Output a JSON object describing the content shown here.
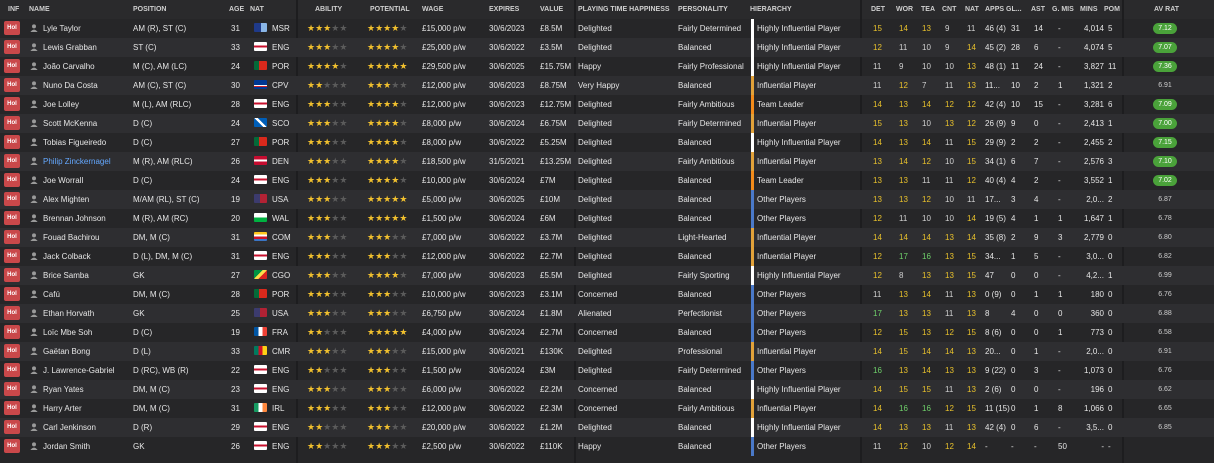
{
  "headers": {
    "inf": "INF",
    "name": "NAME",
    "position": "POSITION",
    "age": "AGE",
    "nat": "NAT",
    "ability": "ABILITY",
    "potential": "POTENTIAL",
    "wage": "WAGE",
    "expires": "EXPIRES",
    "value": "VALUE",
    "playing_time": "PLAYING TIME HAPPINESS",
    "personality": "PERSONALITY",
    "hierarchy": "HIERARCHY",
    "det": "DET",
    "wor": "WOR",
    "tea": "TEA",
    "cnt": "CNT",
    "nat2": "NAT",
    "apps": "APPS",
    "gls": "GL...",
    "ast": "AST",
    "gmis": "G. MIS",
    "mins": "MINS",
    "pom": "POM",
    "avrat": "AV RAT"
  },
  "colors": {
    "inf_badge": "#c9484a",
    "star": "#f2c12e",
    "avrat_green": "#4aa23a",
    "hier_other": "#4a79c9",
    "hier_influential": "#e2a23a",
    "hier_highly": "#ffffff",
    "hier_leader": "#f28b1b"
  },
  "players": [
    {
      "inf": "Hol",
      "name": "Lyle Taylor",
      "position": "AM (R), ST (C)",
      "age": "31",
      "nat": "MSR",
      "ability": 2.5,
      "potential": 3.5,
      "wage": "£15,000 p/w",
      "expires": "30/6/2023",
      "value": "£8.5M",
      "happiness": "Delighted",
      "personality": "Fairly Determined",
      "hierarchy": "Highly Influential Player",
      "det": "15",
      "wor": "14",
      "tea": "13",
      "cnt": "9",
      "nat2": "11",
      "apps": "46 (4)",
      "gls": "31",
      "ast": "14",
      "gmis": "-",
      "mins": "4,014",
      "pom": "5",
      "avrat": "7.12",
      "av_green": true
    },
    {
      "inf": "Hol",
      "name": "Lewis Grabban",
      "position": "ST (C)",
      "age": "33",
      "nat": "ENG",
      "ability": 3,
      "potential": 3.5,
      "wage": "£25,000 p/w",
      "expires": "30/6/2022",
      "value": "£3.5M",
      "happiness": "Delighted",
      "personality": "Balanced",
      "hierarchy": "Highly Influential Player",
      "det": "12",
      "wor": "11",
      "tea": "10",
      "cnt": "9",
      "nat2": "14",
      "apps": "45 (2)",
      "gls": "28",
      "ast": "6",
      "gmis": "-",
      "mins": "4,074",
      "pom": "5",
      "avrat": "7.07",
      "av_green": true
    },
    {
      "inf": "Hol",
      "name": "João Carvalho",
      "position": "M (C), AM (LC)",
      "age": "24",
      "nat": "POR",
      "ability": 3.5,
      "potential": 4.5,
      "wage": "£29,500 p/w",
      "expires": "30/6/2025",
      "value": "£15.75M",
      "happiness": "Happy",
      "personality": "Fairly Professional",
      "hierarchy": "Highly Influential Player",
      "det": "11",
      "wor": "9",
      "tea": "10",
      "cnt": "10",
      "nat2": "13",
      "apps": "48 (1)",
      "gls": "11",
      "ast": "24",
      "gmis": "-",
      "mins": "3,827",
      "pom": "11",
      "avrat": "7.36",
      "av_green": true
    },
    {
      "inf": "Hol",
      "name": "Nuno Da Costa",
      "position": "AM (C), ST (C)",
      "age": "30",
      "nat": "CPV",
      "ability": 2,
      "potential": 2.5,
      "wage": "£12,000 p/w",
      "expires": "30/6/2023",
      "value": "£8.75M",
      "happiness": "Very Happy",
      "personality": "Balanced",
      "hierarchy": "Influential Player",
      "det": "11",
      "wor": "12",
      "tea": "7",
      "cnt": "11",
      "nat2": "13",
      "apps": "11...",
      "gls": "10",
      "ast": "2",
      "gmis": "1",
      "mins": "1,321",
      "pom": "2",
      "avrat": "6.91",
      "av_green": false
    },
    {
      "inf": "Hol",
      "name": "Joe Lolley",
      "position": "M (L), AM (RLC)",
      "age": "28",
      "nat": "ENG",
      "ability": 3,
      "potential": 3.5,
      "wage": "£12,000 p/w",
      "expires": "30/6/2023",
      "value": "£12.75M",
      "happiness": "Delighted",
      "personality": "Fairly Ambitious",
      "hierarchy": "Team Leader",
      "det": "14",
      "wor": "13",
      "tea": "14",
      "cnt": "12",
      "nat2": "12",
      "apps": "42 (4)",
      "gls": "10",
      "ast": "15",
      "gmis": "-",
      "mins": "3,281",
      "pom": "6",
      "avrat": "7.09",
      "av_green": true
    },
    {
      "inf": "Hol",
      "name": "Scott McKenna",
      "position": "D (C)",
      "age": "24",
      "nat": "SCO",
      "ability": 3,
      "potential": 3.5,
      "wage": "£8,000 p/w",
      "expires": "30/6/2024",
      "value": "£6.75M",
      "happiness": "Delighted",
      "personality": "Fairly Determined",
      "hierarchy": "Influential Player",
      "det": "15",
      "wor": "13",
      "tea": "10",
      "cnt": "13",
      "nat2": "12",
      "apps": "26 (9)",
      "gls": "9",
      "ast": "0",
      "gmis": "-",
      "mins": "2,413",
      "pom": "1",
      "avrat": "7.00",
      "av_green": true
    },
    {
      "inf": "Hol",
      "name": "Tobias Figueiredo",
      "position": "D (C)",
      "age": "27",
      "nat": "POR",
      "ability": 3,
      "potential": 3.5,
      "wage": "£8,000 p/w",
      "expires": "30/6/2022",
      "value": "£5.25M",
      "happiness": "Delighted",
      "personality": "Balanced",
      "hierarchy": "Highly Influential Player",
      "det": "14",
      "wor": "13",
      "tea": "14",
      "cnt": "11",
      "nat2": "15",
      "apps": "29 (9)",
      "gls": "2",
      "ast": "2",
      "gmis": "-",
      "mins": "2,455",
      "pom": "2",
      "avrat": "7.15",
      "av_green": true
    },
    {
      "inf": "Hol",
      "name": "Philip Zinckernagel",
      "position": "M (R), AM (RLC)",
      "age": "26",
      "nat": "DEN",
      "ability": 3,
      "potential": 3.5,
      "wage": "£18,500 p/w",
      "expires": "31/5/2021",
      "value": "£13.25M",
      "happiness": "Delighted",
      "personality": "Fairly Ambitious",
      "hierarchy": "Influential Player",
      "det": "13",
      "wor": "14",
      "tea": "12",
      "cnt": "10",
      "nat2": "15",
      "apps": "34 (1)",
      "gls": "6",
      "ast": "7",
      "gmis": "-",
      "mins": "2,576",
      "pom": "3",
      "avrat": "7.10",
      "av_green": true,
      "highlight": true
    },
    {
      "inf": "Hol",
      "name": "Joe Worrall",
      "position": "D (C)",
      "age": "24",
      "nat": "ENG",
      "ability": 3,
      "potential": 3.5,
      "wage": "£10,000 p/w",
      "expires": "30/6/2024",
      "value": "£7M",
      "happiness": "Delighted",
      "personality": "Balanced",
      "hierarchy": "Team Leader",
      "det": "13",
      "wor": "13",
      "tea": "11",
      "cnt": "11",
      "nat2": "12",
      "apps": "40 (4)",
      "gls": "4",
      "ast": "2",
      "gmis": "-",
      "mins": "3,552",
      "pom": "1",
      "avrat": "7.02",
      "av_green": true
    },
    {
      "inf": "Hol",
      "name": "Alex Mighten",
      "position": "M/AM (RL), ST (C)",
      "age": "19",
      "nat": "USA",
      "ability": 2.5,
      "potential": 5,
      "wage": "£5,000 p/w",
      "expires": "30/6/2025",
      "value": "£10M",
      "happiness": "Delighted",
      "personality": "Balanced",
      "hierarchy": "Other Players",
      "det": "13",
      "wor": "13",
      "tea": "12",
      "cnt": "10",
      "nat2": "11",
      "apps": "17...",
      "gls": "3",
      "ast": "4",
      "gmis": "-",
      "mins": "2,0...",
      "pom": "2",
      "avrat": "6.87",
      "av_green": false
    },
    {
      "inf": "Hol",
      "name": "Brennan Johnson",
      "position": "M (R), AM (RC)",
      "age": "20",
      "nat": "WAL",
      "ability": 2.5,
      "potential": 5,
      "wage": "£1,500 p/w",
      "expires": "30/6/2024",
      "value": "£6M",
      "happiness": "Delighted",
      "personality": "Balanced",
      "hierarchy": "Other Players",
      "det": "12",
      "wor": "11",
      "tea": "10",
      "cnt": "10",
      "nat2": "14",
      "apps": "19 (5)",
      "gls": "4",
      "ast": "1",
      "gmis": "1",
      "mins": "1,647",
      "pom": "1",
      "avrat": "6.78",
      "av_green": false
    },
    {
      "inf": "Hol",
      "name": "Fouad Bachirou",
      "position": "DM, M (C)",
      "age": "31",
      "nat": "COM",
      "ability": 2.5,
      "potential": 3,
      "wage": "£7,000 p/w",
      "expires": "30/6/2022",
      "value": "£3.7M",
      "happiness": "Delighted",
      "personality": "Light-Hearted",
      "hierarchy": "Influential Player",
      "det": "14",
      "wor": "14",
      "tea": "14",
      "cnt": "13",
      "nat2": "14",
      "apps": "35 (8)",
      "gls": "2",
      "ast": "9",
      "gmis": "3",
      "mins": "2,779",
      "pom": "0",
      "avrat": "6.80",
      "av_green": false
    },
    {
      "inf": "Hol",
      "name": "Jack Colback",
      "position": "D (L), DM, M (C)",
      "age": "31",
      "nat": "ENG",
      "ability": 2.5,
      "potential": 3,
      "wage": "£12,000 p/w",
      "expires": "30/6/2022",
      "value": "£2.7M",
      "happiness": "Delighted",
      "personality": "Balanced",
      "hierarchy": "Influential Player",
      "det": "12",
      "wor": "17",
      "tea": "16",
      "cnt": "13",
      "nat2": "15",
      "apps": "34...",
      "gls": "1",
      "ast": "5",
      "gmis": "-",
      "mins": "3,0...",
      "pom": "0",
      "avrat": "6.82",
      "av_green": false
    },
    {
      "inf": "Hol",
      "name": "Brice Samba",
      "position": "GK",
      "age": "27",
      "nat": "CGO",
      "ability": 3,
      "potential": 3.5,
      "wage": "£7,000 p/w",
      "expires": "30/6/2023",
      "value": "£5.5M",
      "happiness": "Delighted",
      "personality": "Fairly Sporting",
      "hierarchy": "Highly Influential Player",
      "det": "12",
      "wor": "8",
      "tea": "13",
      "cnt": "13",
      "nat2": "15",
      "apps": "47",
      "gls": "0",
      "ast": "0",
      "gmis": "-",
      "mins": "4,2...",
      "pom": "1",
      "avrat": "6.99",
      "av_green": false
    },
    {
      "inf": "Hol",
      "name": "Cafú",
      "position": "DM, M (C)",
      "age": "28",
      "nat": "POR",
      "ability": 2.5,
      "potential": 3,
      "wage": "£10,000 p/w",
      "expires": "30/6/2023",
      "value": "£3.1M",
      "happiness": "Concerned",
      "personality": "Balanced",
      "hierarchy": "Other Players",
      "det": "11",
      "wor": "13",
      "tea": "14",
      "cnt": "11",
      "nat2": "13",
      "apps": "0 (9)",
      "gls": "0",
      "ast": "1",
      "gmis": "1",
      "mins": "180",
      "pom": "0",
      "avrat": "6.76",
      "av_green": false
    },
    {
      "inf": "Hol",
      "name": "Ethan Horvath",
      "position": "GK",
      "age": "25",
      "nat": "USA",
      "ability": 2.5,
      "potential": 3,
      "wage": "£6,750 p/w",
      "expires": "30/6/2024",
      "value": "£1.8M",
      "happiness": "Alienated",
      "personality": "Perfectionist",
      "hierarchy": "Other Players",
      "det": "17",
      "wor": "13",
      "tea": "13",
      "cnt": "11",
      "nat2": "13",
      "apps": "8",
      "gls": "4",
      "ast": "0",
      "gmis": "0",
      "mins": "360",
      "pom": "0",
      "avrat": "6.88",
      "av_green": false
    },
    {
      "inf": "Hol",
      "name": "Loïc Mbe Soh",
      "position": "D (C)",
      "age": "19",
      "nat": "FRA",
      "ability": 2,
      "potential": 5,
      "wage": "£4,000 p/w",
      "expires": "30/6/2024",
      "value": "£2.7M",
      "happiness": "Concerned",
      "personality": "Balanced",
      "hierarchy": "Other Players",
      "det": "12",
      "wor": "15",
      "tea": "13",
      "cnt": "12",
      "nat2": "15",
      "apps": "8 (6)",
      "gls": "0",
      "ast": "0",
      "gmis": "1",
      "mins": "773",
      "pom": "0",
      "avrat": "6.58",
      "av_green": false
    },
    {
      "inf": "Hol",
      "name": "Gaëtan Bong",
      "position": "D (L)",
      "age": "33",
      "nat": "CMR",
      "ability": 2.5,
      "potential": 3,
      "wage": "£15,000 p/w",
      "expires": "30/6/2021",
      "value": "£130K",
      "happiness": "Delighted",
      "personality": "Professional",
      "hierarchy": "Influential Player",
      "det": "14",
      "wor": "15",
      "tea": "14",
      "cnt": "14",
      "nat2": "13",
      "apps": "20...",
      "gls": "0",
      "ast": "1",
      "gmis": "-",
      "mins": "2,0...",
      "pom": "0",
      "avrat": "6.91",
      "av_green": false
    },
    {
      "inf": "Hol",
      "name": "J. Lawrence-Gabriel",
      "position": "D (RC), WB (R)",
      "age": "22",
      "nat": "ENG",
      "ability": 2,
      "potential": 2.5,
      "wage": "£1,500 p/w",
      "expires": "30/6/2024",
      "value": "£3M",
      "happiness": "Delighted",
      "personality": "Fairly Determined",
      "hierarchy": "Other Players",
      "det": "16",
      "wor": "13",
      "tea": "14",
      "cnt": "13",
      "nat2": "13",
      "apps": "9 (22)",
      "gls": "0",
      "ast": "3",
      "gmis": "-",
      "mins": "1,073",
      "pom": "0",
      "avrat": "6.76",
      "av_green": false
    },
    {
      "inf": "Hol",
      "name": "Ryan Yates",
      "position": "DM, M (C)",
      "age": "23",
      "nat": "ENG",
      "ability": 2.5,
      "potential": 3,
      "wage": "£6,000 p/w",
      "expires": "30/6/2022",
      "value": "£2.2M",
      "happiness": "Concerned",
      "personality": "Balanced",
      "hierarchy": "Highly Influential Player",
      "det": "14",
      "wor": "15",
      "tea": "15",
      "cnt": "11",
      "nat2": "13",
      "apps": "2 (6)",
      "gls": "0",
      "ast": "0",
      "gmis": "-",
      "mins": "196",
      "pom": "0",
      "avrat": "6.62",
      "av_green": false
    },
    {
      "inf": "Hol",
      "name": "Harry Arter",
      "position": "DM, M (C)",
      "age": "31",
      "nat": "IRL",
      "ability": 2.5,
      "potential": 3,
      "wage": "£12,000 p/w",
      "expires": "30/6/2022",
      "value": "£2.3M",
      "happiness": "Concerned",
      "personality": "Fairly Ambitious",
      "hierarchy": "Influential Player",
      "det": "14",
      "wor": "16",
      "tea": "16",
      "cnt": "12",
      "nat2": "15",
      "apps": "11 (15)",
      "gls": "0",
      "ast": "1",
      "gmis": "8",
      "mins": "1,066",
      "pom": "0",
      "avrat": "6.65",
      "av_green": false
    },
    {
      "inf": "Hol",
      "name": "Carl Jenkinson",
      "position": "D (R)",
      "age": "29",
      "nat": "ENG",
      "ability": 2,
      "potential": 2.5,
      "wage": "£20,000 p/w",
      "expires": "30/6/2022",
      "value": "£1.2M",
      "happiness": "Delighted",
      "personality": "Balanced",
      "hierarchy": "Highly Influential Player",
      "det": "14",
      "wor": "13",
      "tea": "13",
      "cnt": "11",
      "nat2": "13",
      "apps": "42 (4)",
      "gls": "0",
      "ast": "6",
      "gmis": "-",
      "mins": "3,5...",
      "pom": "0",
      "avrat": "6.85",
      "av_green": false
    },
    {
      "inf": "Hol",
      "name": "Jordan Smith",
      "position": "GK",
      "age": "26",
      "nat": "ENG",
      "ability": 2,
      "potential": 2.5,
      "wage": "£2,500 p/w",
      "expires": "30/6/2022",
      "value": "£110K",
      "happiness": "Happy",
      "personality": "Balanced",
      "hierarchy": "Other Players",
      "det": "11",
      "wor": "12",
      "tea": "10",
      "cnt": "12",
      "nat2": "14",
      "apps": "-",
      "gls": "-",
      "ast": "-",
      "gmis": "50",
      "mins": "-",
      "pom": "-",
      "avrat": "",
      "av_green": false
    }
  ]
}
